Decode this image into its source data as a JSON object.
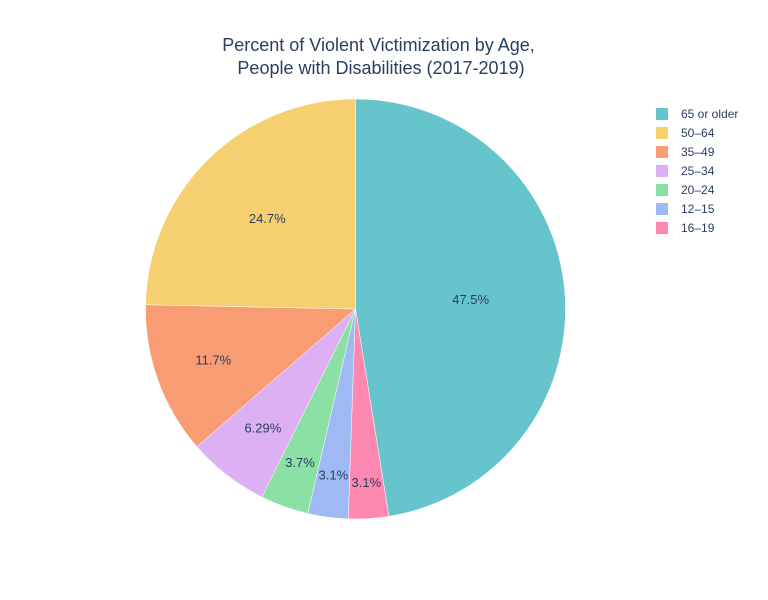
{
  "chart_data": {
    "type": "pie",
    "title_lines": [
      "Percent of Violent Victimization by Age,",
      "People with Disabilities (2017-2019)"
    ],
    "slices": [
      {
        "label": "65 or older",
        "value": 47.5,
        "text": "47.5%",
        "color": "#66c5cc"
      },
      {
        "label": "16–19",
        "value": 3.1,
        "text": "3.1%",
        "color": "#fe88b1"
      },
      {
        "label": "12–15",
        "value": 3.1,
        "text": "3.1%",
        "color": "#9eb9f3"
      },
      {
        "label": "20–24",
        "value": 3.7,
        "text": "3.7%",
        "color": "#8be0a4"
      },
      {
        "label": "25–34",
        "value": 6.29,
        "text": "6.29%",
        "color": "#dcb0f2"
      },
      {
        "label": "35–49",
        "value": 11.7,
        "text": "11.7%",
        "color": "#f89c74"
      },
      {
        "label": "50–64",
        "value": 24.7,
        "text": "24.7%",
        "color": "#f6cf71"
      }
    ],
    "legend_order": [
      "65 or older",
      "50–64",
      "35–49",
      "25–34",
      "20–24",
      "12–15",
      "16–19"
    ],
    "legend_position": "top-right",
    "direction": "clockwise",
    "start": "12 o'clock"
  }
}
